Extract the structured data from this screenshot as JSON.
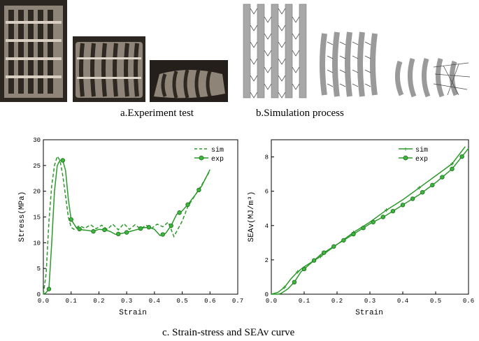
{
  "captions": {
    "a": "a.Experiment test",
    "b": "b.Simulation process",
    "c": "c. Strain-stress and SEAv curve"
  },
  "colors": {
    "series": "#2a9a2a",
    "photo_bg": "#2b2620",
    "sim_bg": "#ffffff"
  },
  "chart_data": [
    {
      "type": "line",
      "xlabel": "Strain",
      "ylabel": "Stress(MPa)",
      "xlim": [
        0,
        0.7
      ],
      "ylim": [
        0,
        30
      ],
      "xticks": [
        "0.0",
        "0.1",
        "0.2",
        "0.3",
        "0.4",
        "0.5",
        "0.6",
        "0.7"
      ],
      "yticks": [
        "0",
        "5",
        "10",
        "15",
        "20",
        "25",
        "30"
      ],
      "legend": "top-right",
      "series": [
        {
          "name": "sim",
          "style": "dashed",
          "x": [
            0,
            0.01,
            0.02,
            0.03,
            0.04,
            0.05,
            0.06,
            0.07,
            0.08,
            0.09,
            0.1,
            0.11,
            0.13,
            0.15,
            0.17,
            0.19,
            0.21,
            0.23,
            0.25,
            0.27,
            0.29,
            0.31,
            0.33,
            0.35,
            0.37,
            0.39,
            0.41,
            0.43,
            0.45,
            0.47,
            0.5,
            0.52,
            0.55,
            0.57,
            0.6
          ],
          "y": [
            0,
            4,
            14,
            21,
            25,
            26.8,
            26,
            23,
            19,
            15,
            13,
            12.6,
            13.3,
            12.8,
            13.5,
            12.7,
            13.4,
            12.6,
            13.6,
            12.5,
            13.7,
            12.6,
            13.5,
            12.7,
            13.4,
            12.8,
            13.6,
            13.1,
            14,
            11.2,
            14.2,
            17,
            19.5,
            21.2,
            24
          ]
        },
        {
          "name": "exp",
          "style": "solid-marker",
          "x": [
            0,
            0.01,
            0.02,
            0.03,
            0.04,
            0.05,
            0.06,
            0.07,
            0.08,
            0.09,
            0.1,
            0.12,
            0.14,
            0.16,
            0.18,
            0.2,
            0.22,
            0.24,
            0.26,
            0.28,
            0.3,
            0.32,
            0.34,
            0.36,
            0.38,
            0.4,
            0.42,
            0.44,
            0.46,
            0.48,
            0.5,
            0.52,
            0.55,
            0.57,
            0.6
          ],
          "y": [
            0,
            0.3,
            1,
            9.8,
            20,
            25,
            26,
            26,
            24,
            18.5,
            14.5,
            12.8,
            12.5,
            12.4,
            12.2,
            12.6,
            12.5,
            12.2,
            11.6,
            11.8,
            12,
            12.3,
            12.6,
            12.9,
            13,
            12.6,
            11.4,
            11.8,
            13.3,
            15.5,
            16.2,
            17.4,
            19.5,
            21,
            24.2
          ]
        }
      ],
      "markers_x": [
        0.02,
        0.07,
        0.1,
        0.13,
        0.18,
        0.22,
        0.27,
        0.3,
        0.35,
        0.38,
        0.43,
        0.46,
        0.49,
        0.52,
        0.56
      ]
    },
    {
      "type": "line",
      "xlabel": "Strain",
      "ylabel": "SEAv(MJ/m³)",
      "xlim": [
        0,
        0.6
      ],
      "ylim": [
        0,
        9
      ],
      "xticks": [
        "0.0",
        "0.1",
        "0.2",
        "0.3",
        "0.4",
        "0.5",
        "0.6"
      ],
      "yticks": [
        "0",
        "2",
        "4",
        "6",
        "8"
      ],
      "legend": "top-right",
      "series": [
        {
          "name": "sim",
          "style": "solid-plus",
          "x": [
            0,
            0.02,
            0.04,
            0.06,
            0.08,
            0.1,
            0.15,
            0.2,
            0.25,
            0.3,
            0.35,
            0.4,
            0.45,
            0.5,
            0.55,
            0.59
          ],
          "y": [
            0,
            0.1,
            0.4,
            0.9,
            1.3,
            1.6,
            2.2,
            2.9,
            3.6,
            4.2,
            4.9,
            5.5,
            6.2,
            6.9,
            7.6,
            8.6
          ]
        },
        {
          "name": "exp",
          "style": "solid-marker",
          "x": [
            0,
            0.02,
            0.03,
            0.05,
            0.07,
            0.09,
            0.12,
            0.15,
            0.2,
            0.25,
            0.3,
            0.35,
            0.4,
            0.45,
            0.5,
            0.55,
            0.6
          ],
          "y": [
            0,
            0,
            0.05,
            0.3,
            0.7,
            1.3,
            1.8,
            2.3,
            2.9,
            3.5,
            4.1,
            4.6,
            5.2,
            5.8,
            6.5,
            7.3,
            8.5
          ]
        }
      ],
      "markers_x": [
        0.07,
        0.1,
        0.13,
        0.16,
        0.19,
        0.22,
        0.25,
        0.28,
        0.31,
        0.34,
        0.37,
        0.4,
        0.43,
        0.46,
        0.49,
        0.52,
        0.55,
        0.58
      ]
    }
  ]
}
